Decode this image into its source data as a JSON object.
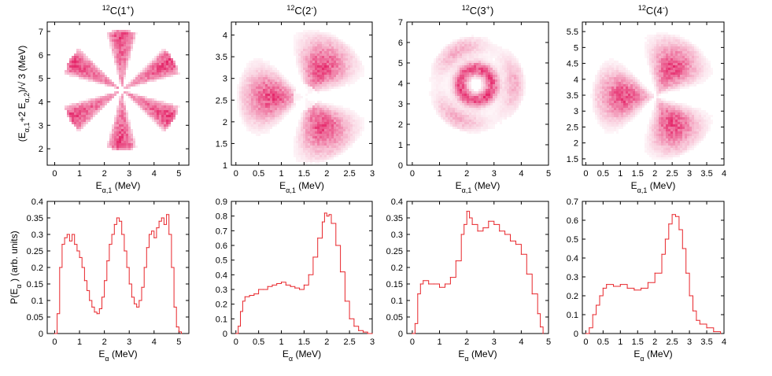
{
  "colors": {
    "accent": "#e0004f",
    "line": "#e8262b",
    "frame": "#000000"
  },
  "chart_data": [
    {
      "type": "heatmap",
      "id": "dalitz-1plus",
      "title": "12C(1+)",
      "title_parts": [
        "12",
        "C(1",
        "+",
        ")"
      ],
      "xlabel": "Eα,1 (MeV)",
      "ylabel": "(Eα,1+2 Eα,2)/√3 (MeV)",
      "xlim": [
        -0.3,
        5.4
      ],
      "ylim": [
        1.3,
        7.4
      ],
      "xticks": [
        0,
        1,
        2,
        3,
        4,
        5
      ],
      "yticks": [
        2,
        3,
        4,
        5,
        6,
        7
      ],
      "pattern": {
        "center": [
          2.65,
          4.55
        ],
        "radius": 2.55,
        "lobes": 6,
        "lobe_angle_deg": 90,
        "inner_radius": 0.0
      }
    },
    {
      "type": "heatmap",
      "id": "dalitz-2minus",
      "title": "12C(2-)",
      "title_parts": [
        "12",
        "C(2",
        "-",
        ")"
      ],
      "xlabel": "Eα,1 (MeV)",
      "ylabel": "",
      "xlim": [
        -0.1,
        3.0
      ],
      "ylim": [
        1.0,
        4.3
      ],
      "xticks": [
        0,
        0.5,
        1,
        1.5,
        2,
        2.5,
        3
      ],
      "yticks": [
        1,
        1.5,
        2,
        2.5,
        3,
        3.5,
        4
      ],
      "pattern": {
        "center": [
          1.5,
          2.6
        ],
        "radius": 1.55,
        "lobes": 3,
        "lobe_angle_deg": 180,
        "inner_radius": 0.3
      }
    },
    {
      "type": "heatmap",
      "id": "dalitz-3plus",
      "title": "12C(3+)",
      "title_parts": [
        "12",
        "C(3",
        "+",
        ")"
      ],
      "xlabel": "Eα,1 (MeV)",
      "ylabel": "",
      "xlim": [
        -0.2,
        5.0
      ],
      "ylim": [
        0.0,
        7.0
      ],
      "xticks": [
        0,
        1,
        2,
        3,
        4,
        5
      ],
      "yticks": [
        0,
        1,
        2,
        3,
        4,
        5,
        6,
        7
      ],
      "pattern": {
        "center": [
          2.3,
          4.0
        ],
        "radius": 2.4,
        "lobes": 3,
        "lobe_angle_deg": 0,
        "inner_radius": 0.35
      }
    },
    {
      "type": "heatmap",
      "id": "dalitz-4minus",
      "title": "12C(4-)",
      "title_parts": [
        "12",
        "C(4",
        "-",
        ")"
      ],
      "xlabel": "Eα,1 (MeV)",
      "ylabel": "",
      "xlim": [
        -0.1,
        4.0
      ],
      "ylim": [
        1.3,
        5.8
      ],
      "xticks": [
        0,
        0.5,
        1,
        1.5,
        2,
        2.5,
        3,
        3.5,
        4
      ],
      "yticks": [
        1.5,
        2,
        2.5,
        3,
        3.5,
        4,
        4.5,
        5,
        5.5
      ],
      "pattern": {
        "center": [
          2.0,
          3.5
        ],
        "radius": 2.0,
        "lobes": 3,
        "lobe_angle_deg": 180,
        "inner_radius": 0.0
      }
    },
    {
      "type": "line",
      "id": "spectrum-1plus",
      "xlabel": "Eα (MeV)",
      "ylabel": "P(Eα ) (arb. units)",
      "xlim": [
        -0.3,
        5.4
      ],
      "ylim": [
        0,
        0.4
      ],
      "xticks": [
        0,
        1,
        2,
        3,
        4,
        5
      ],
      "yticks": [
        0,
        0.05,
        0.1,
        0.15,
        0.2,
        0.25,
        0.3,
        0.35,
        0.4
      ],
      "x": [
        0.0,
        0.1,
        0.2,
        0.3,
        0.4,
        0.5,
        0.6,
        0.7,
        0.8,
        0.9,
        1.0,
        1.1,
        1.2,
        1.3,
        1.4,
        1.5,
        1.6,
        1.7,
        1.8,
        1.9,
        2.0,
        2.1,
        2.2,
        2.3,
        2.4,
        2.5,
        2.6,
        2.7,
        2.8,
        2.9,
        3.0,
        3.1,
        3.2,
        3.3,
        3.4,
        3.5,
        3.6,
        3.7,
        3.8,
        3.9,
        4.0,
        4.1,
        4.2,
        4.3,
        4.4,
        4.5,
        4.6,
        4.7,
        4.8,
        4.9,
        5.0,
        5.1
      ],
      "y": [
        0.0,
        0.06,
        0.2,
        0.27,
        0.29,
        0.3,
        0.28,
        0.3,
        0.27,
        0.25,
        0.23,
        0.2,
        0.16,
        0.13,
        0.1,
        0.08,
        0.065,
        0.06,
        0.075,
        0.11,
        0.16,
        0.22,
        0.27,
        0.3,
        0.33,
        0.35,
        0.34,
        0.3,
        0.25,
        0.2,
        0.15,
        0.11,
        0.09,
        0.08,
        0.1,
        0.14,
        0.2,
        0.26,
        0.3,
        0.31,
        0.29,
        0.32,
        0.34,
        0.35,
        0.33,
        0.36,
        0.3,
        0.2,
        0.08,
        0.02,
        0.005,
        0.0
      ]
    },
    {
      "type": "line",
      "id": "spectrum-2minus",
      "xlabel": "Eα (MeV)",
      "ylabel": "",
      "xlim": [
        -0.1,
        3.0
      ],
      "ylim": [
        0,
        0.9
      ],
      "xticks": [
        0,
        0.5,
        1,
        1.5,
        2,
        2.5,
        3
      ],
      "yticks": [
        0,
        0.1,
        0.2,
        0.3,
        0.4,
        0.5,
        0.6,
        0.7,
        0.8,
        0.9
      ],
      "x": [
        0.0,
        0.05,
        0.1,
        0.15,
        0.2,
        0.3,
        0.4,
        0.5,
        0.6,
        0.7,
        0.8,
        0.9,
        1.0,
        1.1,
        1.2,
        1.3,
        1.4,
        1.5,
        1.6,
        1.7,
        1.8,
        1.9,
        1.95,
        2.0,
        2.05,
        2.1,
        2.2,
        2.3,
        2.4,
        2.5,
        2.6,
        2.7,
        2.8,
        2.9,
        3.0
      ],
      "y": [
        0.0,
        0.05,
        0.15,
        0.22,
        0.25,
        0.26,
        0.27,
        0.3,
        0.3,
        0.32,
        0.33,
        0.34,
        0.35,
        0.33,
        0.32,
        0.31,
        0.3,
        0.33,
        0.4,
        0.52,
        0.65,
        0.76,
        0.82,
        0.8,
        0.81,
        0.75,
        0.6,
        0.42,
        0.22,
        0.1,
        0.05,
        0.02,
        0.01,
        0.0,
        0.0
      ]
    },
    {
      "type": "line",
      "id": "spectrum-3plus",
      "xlabel": "Eα (MeV)",
      "ylabel": "",
      "xlim": [
        -0.2,
        5.0
      ],
      "ylim": [
        0,
        0.4
      ],
      "xticks": [
        0,
        1,
        2,
        3,
        4,
        5
      ],
      "yticks": [
        0,
        0.05,
        0.1,
        0.15,
        0.2,
        0.25,
        0.3,
        0.35,
        0.4
      ],
      "x": [
        0.0,
        0.1,
        0.2,
        0.3,
        0.4,
        0.6,
        0.8,
        1.0,
        1.2,
        1.4,
        1.6,
        1.8,
        1.9,
        2.0,
        2.1,
        2.2,
        2.4,
        2.6,
        2.8,
        3.0,
        3.2,
        3.4,
        3.6,
        3.8,
        4.0,
        4.2,
        4.4,
        4.6,
        4.7,
        4.8
      ],
      "y": [
        0.0,
        0.03,
        0.12,
        0.15,
        0.16,
        0.15,
        0.15,
        0.14,
        0.15,
        0.17,
        0.22,
        0.3,
        0.33,
        0.37,
        0.35,
        0.33,
        0.31,
        0.32,
        0.34,
        0.33,
        0.31,
        0.3,
        0.28,
        0.27,
        0.24,
        0.18,
        0.12,
        0.06,
        0.02,
        0.0
      ]
    },
    {
      "type": "line",
      "id": "spectrum-4minus",
      "xlabel": "Eα (MeV)",
      "ylabel": "",
      "xlim": [
        -0.1,
        4.0
      ],
      "ylim": [
        0,
        0.7
      ],
      "xticks": [
        0,
        0.5,
        1,
        1.5,
        2,
        2.5,
        3,
        3.5,
        4
      ],
      "yticks": [
        0,
        0.1,
        0.2,
        0.3,
        0.4,
        0.5,
        0.6,
        0.7
      ],
      "x": [
        0.0,
        0.1,
        0.2,
        0.3,
        0.4,
        0.5,
        0.6,
        0.8,
        1.0,
        1.2,
        1.4,
        1.6,
        1.8,
        2.0,
        2.2,
        2.3,
        2.4,
        2.5,
        2.6,
        2.7,
        2.8,
        2.9,
        3.0,
        3.1,
        3.2,
        3.3,
        3.5,
        3.7,
        3.9
      ],
      "y": [
        0.0,
        0.03,
        0.1,
        0.15,
        0.2,
        0.24,
        0.26,
        0.25,
        0.26,
        0.24,
        0.23,
        0.24,
        0.27,
        0.32,
        0.42,
        0.5,
        0.58,
        0.63,
        0.62,
        0.55,
        0.45,
        0.32,
        0.2,
        0.12,
        0.07,
        0.05,
        0.03,
        0.01,
        0.0
      ]
    }
  ]
}
